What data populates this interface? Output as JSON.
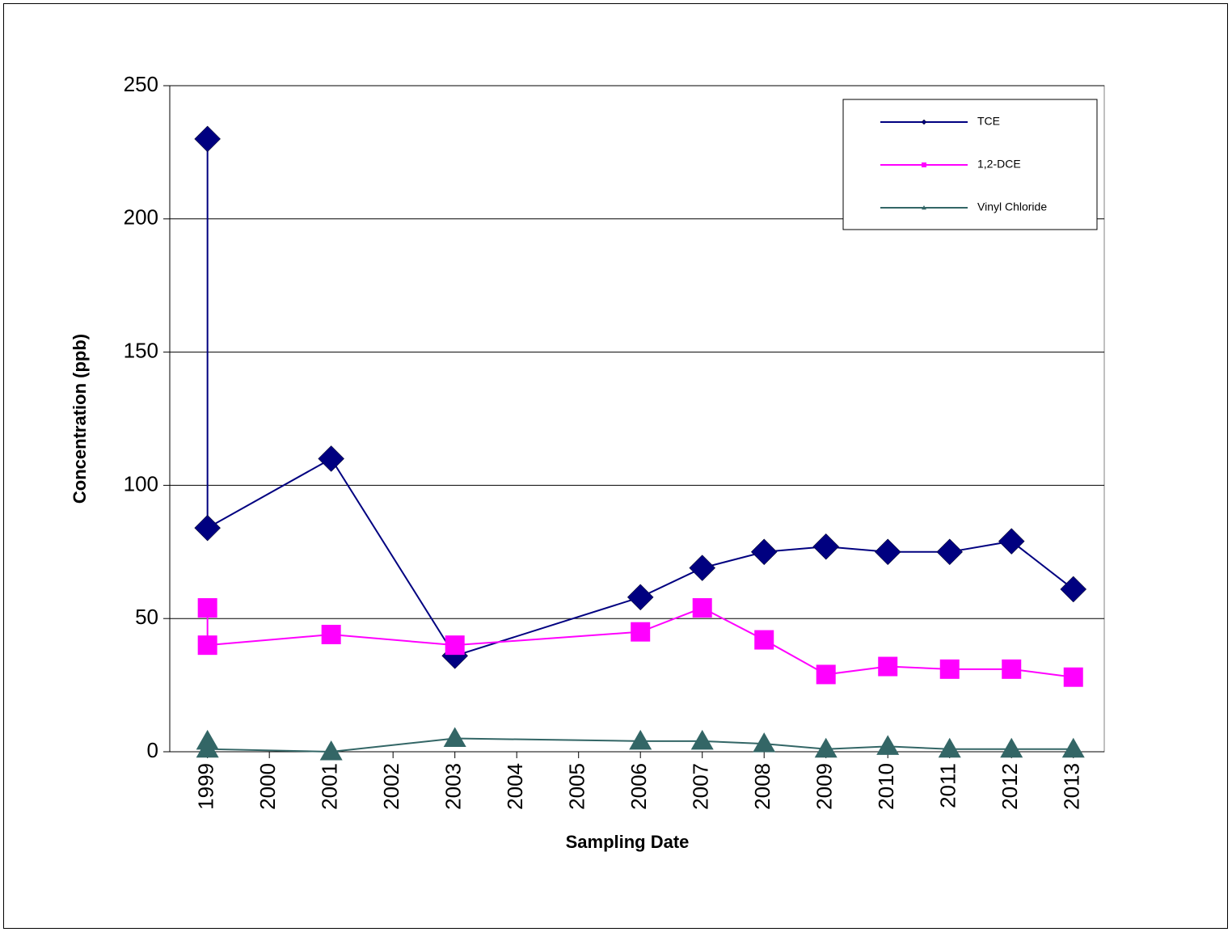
{
  "chart_data": {
    "type": "line",
    "xlabel": "Sampling Date",
    "ylabel": "Concentration (ppb)",
    "xlim": [
      1998.39,
      2013.5
    ],
    "xticks": [
      1999,
      2000,
      2001,
      2002,
      2003,
      2004,
      2005,
      2006,
      2007,
      2008,
      2009,
      2010,
      2011,
      2012,
      2013
    ],
    "ylim": [
      0,
      250
    ],
    "yticks": [
      0,
      50,
      100,
      150,
      200,
      250
    ],
    "grid": true,
    "legend": "upper right",
    "x": [
      1999,
      1999,
      2001,
      2003,
      2006,
      2007,
      2008,
      2009,
      2010,
      2011,
      2012,
      2013
    ],
    "series": [
      {
        "name": "TCE",
        "color": "#000080",
        "marker": "diamond",
        "values": [
          230,
          84,
          110,
          36,
          58,
          69,
          75,
          77,
          75,
          75,
          79,
          61
        ]
      },
      {
        "name": "1,2-DCE",
        "color": "#ff00ff",
        "marker": "square",
        "values": [
          54,
          40,
          44,
          40,
          45,
          54,
          42,
          29,
          32,
          31,
          31,
          28
        ]
      },
      {
        "name": "Vinyl Chloride",
        "color": "#336666",
        "marker": "triangle",
        "values": [
          4,
          1,
          0,
          5,
          4,
          4,
          3,
          1,
          2,
          1,
          1,
          1
        ]
      }
    ]
  }
}
